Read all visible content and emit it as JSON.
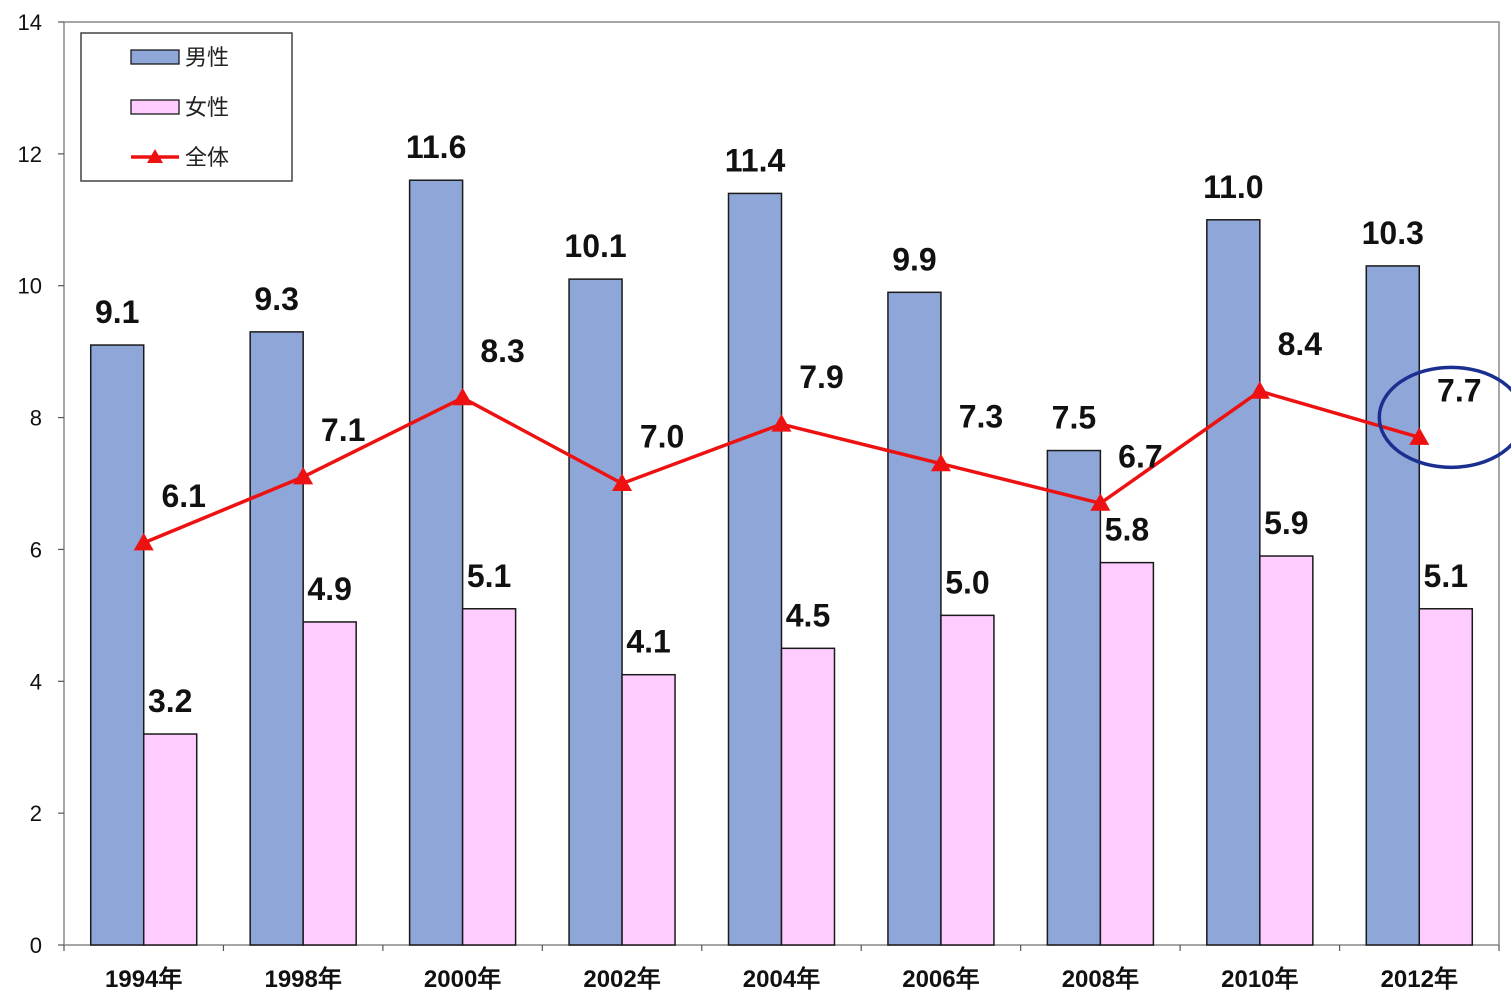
{
  "chart_data": {
    "type": "bar",
    "categories": [
      "1994年",
      "1998年",
      "2000年",
      "2002年",
      "2004年",
      "2006年",
      "2008年",
      "2010年",
      "2012年"
    ],
    "series": [
      {
        "name": "男性",
        "type": "bar",
        "color": "#8ea6d8",
        "values": [
          9.1,
          9.3,
          11.6,
          10.1,
          11.4,
          9.9,
          7.5,
          11.0,
          10.3
        ]
      },
      {
        "name": "女性",
        "type": "bar",
        "color": "#ffccff",
        "values": [
          3.2,
          4.9,
          5.1,
          4.1,
          4.5,
          5.0,
          5.8,
          5.9,
          5.1
        ]
      },
      {
        "name": "全体",
        "type": "line",
        "color": "#ee1111",
        "marker": "triangle",
        "values": [
          6.1,
          7.1,
          8.3,
          7.0,
          7.9,
          7.3,
          6.7,
          8.4,
          7.7
        ]
      }
    ],
    "ylim": [
      0,
      14
    ],
    "yticks": [
      0,
      2,
      4,
      6,
      8,
      10,
      12,
      14
    ],
    "title": "",
    "xlabel": "",
    "ylabel": "",
    "grid": false,
    "legend_position": "top-left",
    "highlight": {
      "category": "2012年",
      "series": "全体",
      "shape": "ellipse",
      "color": "#1a2f8f"
    }
  }
}
